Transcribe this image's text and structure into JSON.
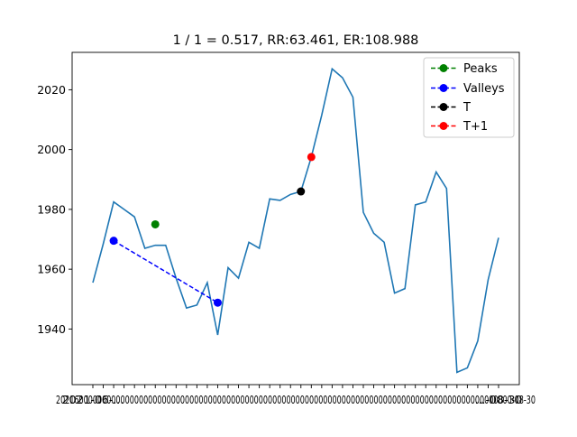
{
  "chart_data": {
    "type": "line",
    "title": "1 / 1 = 0.517, RR:63.461, ER:108.988",
    "xlabel": "",
    "ylabel": "",
    "ylim": [
      1921.4,
      2032.5
    ],
    "yticks": [
      1940,
      1960,
      1980,
      2000,
      2020
    ],
    "x_tick_labels_note": "overlapping date tick labels starting 2021-... and ending ...-08-30",
    "x_first_label": "2021-06-...",
    "x_last_label": "...-08-30",
    "x_tick_labels": [
      "2021-",
      "",
      "",
      "",
      "",
      "",
      "",
      "",
      "",
      "",
      "",
      "",
      "",
      "",
      "",
      "",
      "",
      "",
      "",
      "",
      "",
      "",
      "",
      "",
      "",
      "",
      "",
      "",
      "",
      "",
      "",
      "",
      "",
      "",
      "",
      "",
      "",
      "",
      "",
      "",
      "",
      "08-30"
    ],
    "series": [
      {
        "color": "#1f77b4",
        "values": [
          1955.5,
          1968.5,
          1982.5,
          1980.0,
          1977.5,
          1967.0,
          1968.0,
          1968.0,
          1957.0,
          1947.0,
          1948.0,
          1955.5,
          1938.0,
          1960.5,
          1957.0,
          1969.0,
          1967.0,
          1983.5,
          1983.0,
          1985.0,
          1986.0,
          1997.5,
          2011.5,
          2027.0,
          2024.0,
          2017.5,
          1979.0,
          1972.0,
          1969.0,
          1952.0,
          1953.5,
          1981.5,
          1982.5,
          1992.5,
          1987.0,
          1925.5,
          1927.0,
          1936.0,
          1956.5,
          1970.5
        ]
      }
    ],
    "legend": {
      "placement": "top-right",
      "entries": [
        {
          "label": "Peaks",
          "color": "#008000"
        },
        {
          "label": "Valleys",
          "color": "#0000ff"
        },
        {
          "label": "T",
          "color": "#000000"
        },
        {
          "label": "T+1",
          "color": "#ff0000"
        }
      ]
    },
    "markers": {
      "peaks": [
        {
          "x_index": 6,
          "y": 1975.0
        }
      ],
      "valleys": [
        {
          "x_index": 2,
          "y": 1969.5
        },
        {
          "x_index": 12,
          "y": 1948.8
        }
      ],
      "T": [
        {
          "x_index": 20,
          "y": 1986.0
        }
      ],
      "T1": [
        {
          "x_index": 21,
          "y": 1997.5
        }
      ]
    }
  }
}
